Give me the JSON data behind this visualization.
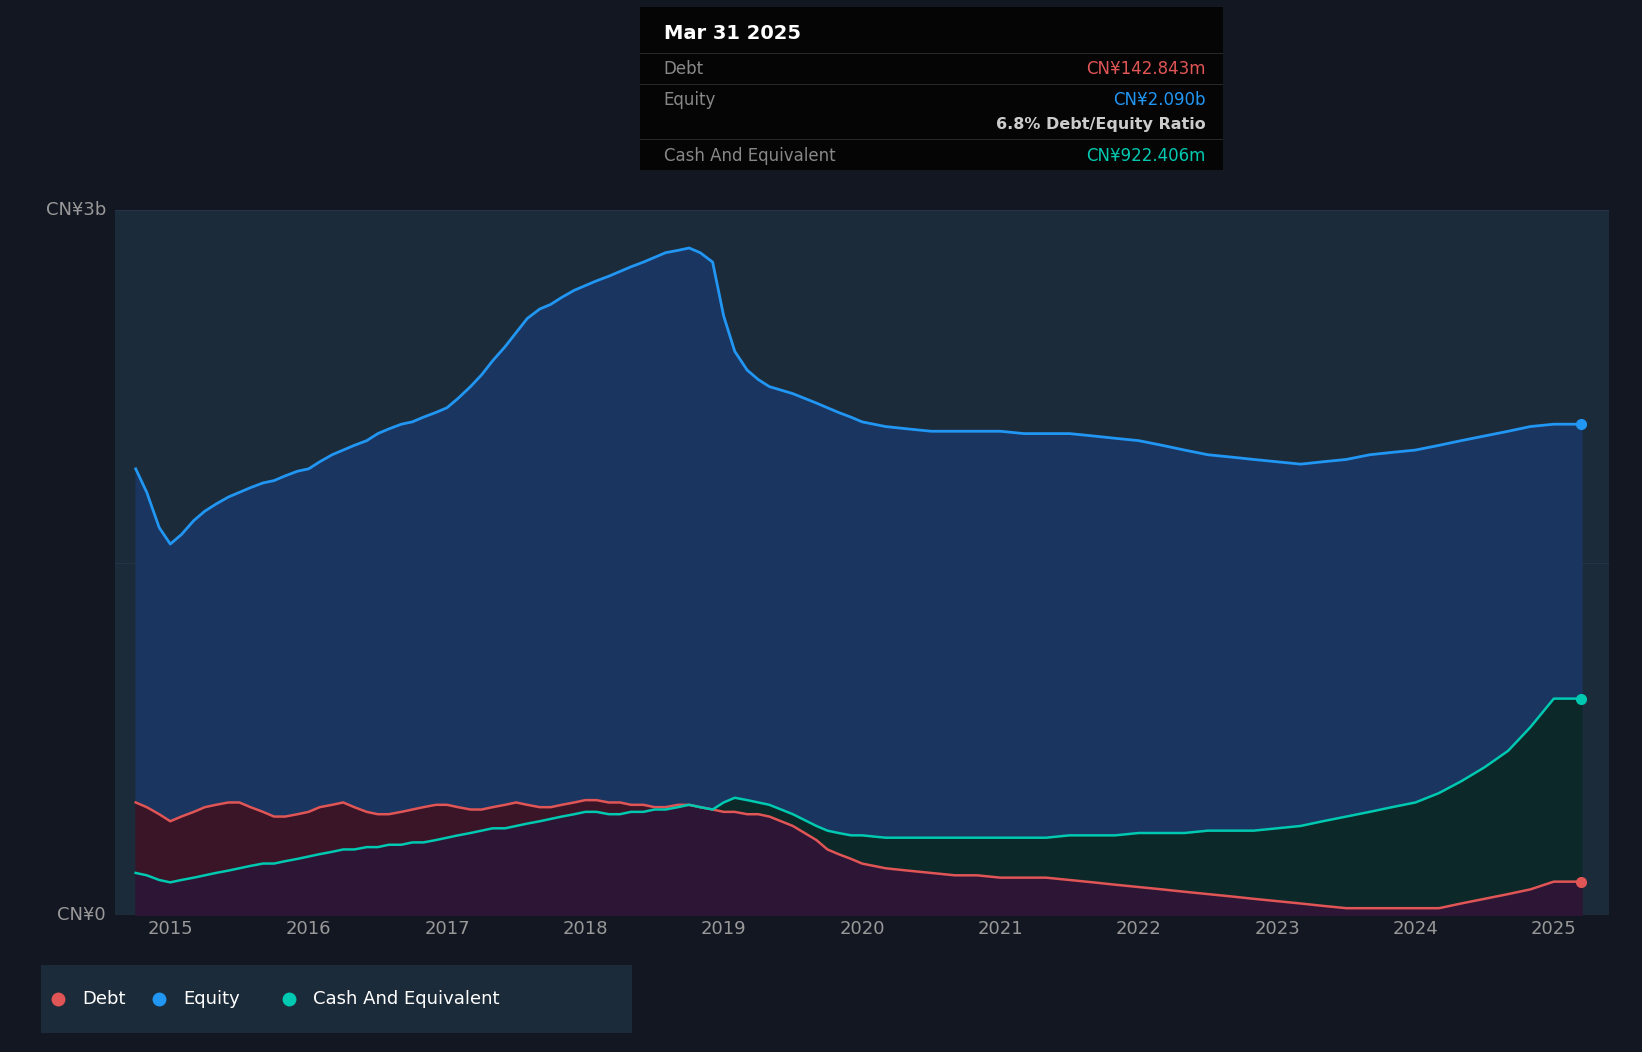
{
  "bg_color": "#131722",
  "chart_bg_color": "#1c2b3a",
  "outer_bg_color": "#131722",
  "equity_line_color": "#2196f3",
  "equity_fill_color": "#1a3560",
  "debt_line_color": "#e05555",
  "debt_fill_color": "#3a1528",
  "cash_line_color": "#00c9b1",
  "cash_fill_color": "#0d2828",
  "overlap_fill_color": "#2d1535",
  "grid_color": "#253348",
  "axis_text_color": "#999999",
  "ylabel_3b": "CN¥3b",
  "ylabel_0": "CN¥0",
  "tooltip_bg": "#050505",
  "tooltip_title": "Mar 31 2025",
  "tooltip_debt_label": "Debt",
  "tooltip_debt_val": "CN¥142.843m",
  "tooltip_equity_label": "Equity",
  "tooltip_equity_val": "CN¥2.090b",
  "tooltip_ratio": "6.8% Debt/Equity Ratio",
  "tooltip_cash_label": "Cash And Equivalent",
  "tooltip_cash_val": "CN¥922.406m",
  "legend_bg": "#1c2b3a",
  "years": [
    2014.75,
    2014.83,
    2014.92,
    2015.0,
    2015.08,
    2015.17,
    2015.25,
    2015.33,
    2015.42,
    2015.5,
    2015.58,
    2015.67,
    2015.75,
    2015.83,
    2015.92,
    2016.0,
    2016.08,
    2016.17,
    2016.25,
    2016.33,
    2016.42,
    2016.5,
    2016.58,
    2016.67,
    2016.75,
    2016.83,
    2016.92,
    2017.0,
    2017.08,
    2017.17,
    2017.25,
    2017.33,
    2017.42,
    2017.5,
    2017.58,
    2017.67,
    2017.75,
    2017.83,
    2017.92,
    2018.0,
    2018.08,
    2018.17,
    2018.25,
    2018.33,
    2018.42,
    2018.5,
    2018.58,
    2018.67,
    2018.75,
    2018.83,
    2018.92,
    2019.0,
    2019.08,
    2019.17,
    2019.25,
    2019.33,
    2019.5,
    2019.67,
    2019.75,
    2019.83,
    2019.92,
    2020.0,
    2020.17,
    2020.33,
    2020.5,
    2020.67,
    2020.83,
    2021.0,
    2021.17,
    2021.33,
    2021.5,
    2021.67,
    2021.83,
    2022.0,
    2022.17,
    2022.33,
    2022.5,
    2022.67,
    2022.83,
    2023.0,
    2023.17,
    2023.33,
    2023.5,
    2023.67,
    2023.83,
    2024.0,
    2024.17,
    2024.33,
    2024.5,
    2024.67,
    2024.83,
    2025.0,
    2025.2
  ],
  "equity": [
    1.9,
    1.8,
    1.65,
    1.58,
    1.62,
    1.68,
    1.72,
    1.75,
    1.78,
    1.8,
    1.82,
    1.84,
    1.85,
    1.87,
    1.89,
    1.9,
    1.93,
    1.96,
    1.98,
    2.0,
    2.02,
    2.05,
    2.07,
    2.09,
    2.1,
    2.12,
    2.14,
    2.16,
    2.2,
    2.25,
    2.3,
    2.36,
    2.42,
    2.48,
    2.54,
    2.58,
    2.6,
    2.63,
    2.66,
    2.68,
    2.7,
    2.72,
    2.74,
    2.76,
    2.78,
    2.8,
    2.82,
    2.83,
    2.84,
    2.82,
    2.78,
    2.55,
    2.4,
    2.32,
    2.28,
    2.25,
    2.22,
    2.18,
    2.16,
    2.14,
    2.12,
    2.1,
    2.08,
    2.07,
    2.06,
    2.06,
    2.06,
    2.06,
    2.05,
    2.05,
    2.05,
    2.04,
    2.03,
    2.02,
    2.0,
    1.98,
    1.96,
    1.95,
    1.94,
    1.93,
    1.92,
    1.93,
    1.94,
    1.96,
    1.97,
    1.98,
    2.0,
    2.02,
    2.04,
    2.06,
    2.08,
    2.09,
    2.09
  ],
  "debt": [
    0.48,
    0.46,
    0.43,
    0.4,
    0.42,
    0.44,
    0.46,
    0.47,
    0.48,
    0.48,
    0.46,
    0.44,
    0.42,
    0.42,
    0.43,
    0.44,
    0.46,
    0.47,
    0.48,
    0.46,
    0.44,
    0.43,
    0.43,
    0.44,
    0.45,
    0.46,
    0.47,
    0.47,
    0.46,
    0.45,
    0.45,
    0.46,
    0.47,
    0.48,
    0.47,
    0.46,
    0.46,
    0.47,
    0.48,
    0.49,
    0.49,
    0.48,
    0.48,
    0.47,
    0.47,
    0.46,
    0.46,
    0.47,
    0.47,
    0.46,
    0.45,
    0.44,
    0.44,
    0.43,
    0.43,
    0.42,
    0.38,
    0.32,
    0.28,
    0.26,
    0.24,
    0.22,
    0.2,
    0.19,
    0.18,
    0.17,
    0.17,
    0.16,
    0.16,
    0.16,
    0.15,
    0.14,
    0.13,
    0.12,
    0.11,
    0.1,
    0.09,
    0.08,
    0.07,
    0.06,
    0.05,
    0.04,
    0.03,
    0.03,
    0.03,
    0.03,
    0.03,
    0.05,
    0.07,
    0.09,
    0.11,
    0.143,
    0.143
  ],
  "cash": [
    0.18,
    0.17,
    0.15,
    0.14,
    0.15,
    0.16,
    0.17,
    0.18,
    0.19,
    0.2,
    0.21,
    0.22,
    0.22,
    0.23,
    0.24,
    0.25,
    0.26,
    0.27,
    0.28,
    0.28,
    0.29,
    0.29,
    0.3,
    0.3,
    0.31,
    0.31,
    0.32,
    0.33,
    0.34,
    0.35,
    0.36,
    0.37,
    0.37,
    0.38,
    0.39,
    0.4,
    0.41,
    0.42,
    0.43,
    0.44,
    0.44,
    0.43,
    0.43,
    0.44,
    0.44,
    0.45,
    0.45,
    0.46,
    0.47,
    0.46,
    0.45,
    0.48,
    0.5,
    0.49,
    0.48,
    0.47,
    0.43,
    0.38,
    0.36,
    0.35,
    0.34,
    0.34,
    0.33,
    0.33,
    0.33,
    0.33,
    0.33,
    0.33,
    0.33,
    0.33,
    0.34,
    0.34,
    0.34,
    0.35,
    0.35,
    0.35,
    0.36,
    0.36,
    0.36,
    0.37,
    0.38,
    0.4,
    0.42,
    0.44,
    0.46,
    0.48,
    0.52,
    0.57,
    0.63,
    0.7,
    0.8,
    0.922,
    0.922
  ],
  "ylim": [
    0,
    3.0
  ],
  "xlim": [
    2014.6,
    2025.4
  ],
  "xticks": [
    2015,
    2016,
    2017,
    2018,
    2019,
    2020,
    2021,
    2022,
    2023,
    2024,
    2025
  ]
}
